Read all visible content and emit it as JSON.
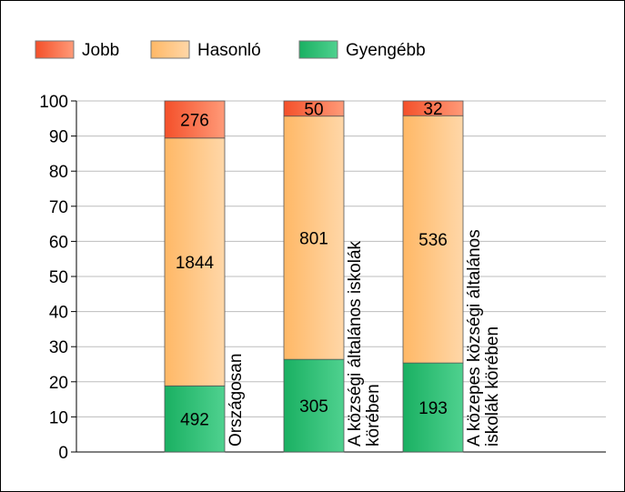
{
  "chart_data": {
    "type": "bar",
    "stacked": "percent",
    "categories": [
      "Országosan",
      "A községi általános iskolák körében",
      "A közepes községi általános iskolák körében"
    ],
    "category_label_lines": [
      [
        "Országosan"
      ],
      [
        "A községi általános iskolák",
        "körében"
      ],
      [
        "A közepes községi általános",
        "iskolák körében"
      ]
    ],
    "series": [
      {
        "name": "Gyengébb",
        "values": [
          492,
          305,
          193
        ],
        "color": "#2bbf6f"
      },
      {
        "name": "Hasonló",
        "values": [
          1844,
          801,
          536
        ],
        "color": "#ffc078"
      },
      {
        "name": "Jobb",
        "values": [
          276,
          50,
          32
        ],
        "color": "#ff7043"
      }
    ],
    "legend_order": [
      "Jobb",
      "Hasonló",
      "Gyengébb"
    ],
    "legend_position": "top-left",
    "ylim": [
      0,
      100
    ],
    "yticks": [
      0,
      10,
      20,
      30,
      40,
      50,
      60,
      70,
      80,
      90,
      100
    ],
    "grid": true,
    "title": "",
    "xlabel": "",
    "ylabel": ""
  }
}
